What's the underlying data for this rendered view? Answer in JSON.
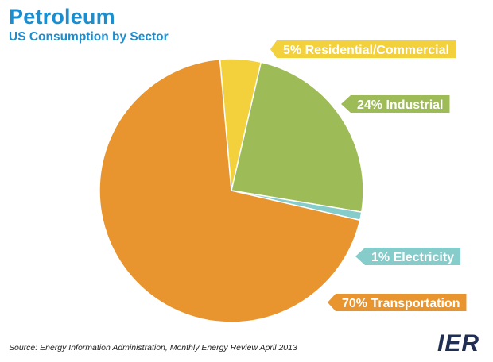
{
  "header": {
    "title": "Petroleum",
    "subtitle": "US Consumption by Sector"
  },
  "footer": {
    "source": "Source: Energy Information Administration, Monthly Energy Review April 2013",
    "logo": "IER"
  },
  "chart_data": {
    "type": "pie",
    "title": "Petroleum",
    "subtitle": "US Consumption by Sector",
    "start_angle_deg": -5,
    "direction": "clockwise",
    "slices": [
      {
        "label": "5% Residential/Commercial",
        "category": "Residential/Commercial",
        "value": 5,
        "color": "#f3d13c"
      },
      {
        "label": "24% Industrial",
        "category": "Industrial",
        "value": 24,
        "color": "#9dbb56"
      },
      {
        "label": "1% Electricity",
        "category": "Electricity",
        "value": 1,
        "color": "#86cccb"
      },
      {
        "label": "70% Transportation",
        "category": "Transportation",
        "value": 70,
        "color": "#e89530"
      }
    ]
  }
}
